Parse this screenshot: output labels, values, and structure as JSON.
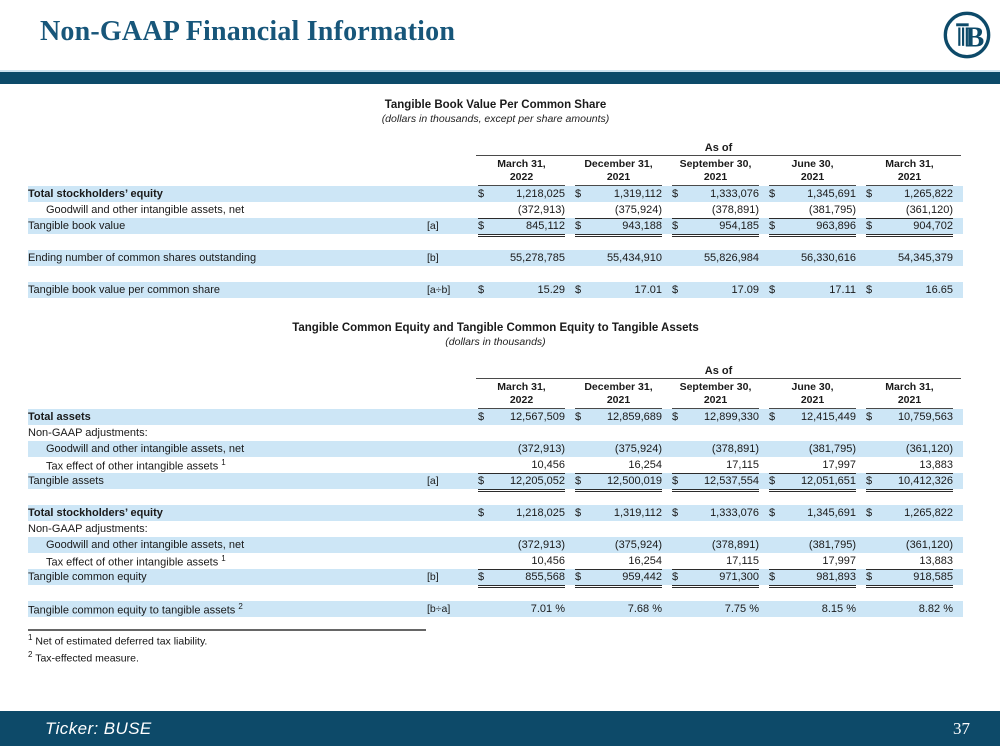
{
  "header": {
    "title": "Non-GAAP Financial Information",
    "logo_icon": "busey-b-column-logo"
  },
  "colors": {
    "accent_bar": "#0D4A69",
    "band_blue": "#CDE6F6",
    "title_text": "#17567A",
    "rule_dark": "#2B2B2B"
  },
  "tables": [
    {
      "title": "Tangible Book Value Per Common Share",
      "subtitle": "(dollars in thousands, except per share amounts)",
      "as_of_label": "As of",
      "columns": [
        {
          "period": "March 31,",
          "year": "2022"
        },
        {
          "period": "December 31,",
          "year": "2021"
        },
        {
          "period": "September 30,",
          "year": "2021"
        },
        {
          "period": "June 30,",
          "year": "2021"
        },
        {
          "period": "March 31,",
          "year": "2021"
        }
      ],
      "rows": [
        {
          "label": "Total stockholders’ equity",
          "bold": true,
          "band": true,
          "dollar": true,
          "values": [
            "1,218,025",
            "1,319,112",
            "1,333,076",
            "1,345,691",
            "1,265,822"
          ]
        },
        {
          "label": "Goodwill and other intangible assets, net",
          "indent": 1,
          "underline": "single",
          "values": [
            "(372,913)",
            "(375,924)",
            "(378,891)",
            "(381,795)",
            "(361,120)"
          ]
        },
        {
          "label": "Tangible book value",
          "bracket": "[a]",
          "band": true,
          "dollar": true,
          "underline": "double",
          "values": [
            "845,112",
            "943,188",
            "954,185",
            "963,896",
            "904,702"
          ]
        },
        {
          "spacer": true
        },
        {
          "label": "Ending number of common shares outstanding",
          "bracket": "[b]",
          "band": true,
          "values": [
            "55,278,785",
            "55,434,910",
            "55,826,984",
            "56,330,616",
            "54,345,379"
          ]
        },
        {
          "spacer": true
        },
        {
          "label": "Tangible book value per common share",
          "bracket": "[a÷b]",
          "band": true,
          "dollar": true,
          "values": [
            "15.29",
            "17.01",
            "17.09",
            "17.11",
            "16.65"
          ]
        }
      ]
    },
    {
      "title": "Tangible Common Equity and Tangible Common Equity to Tangible Assets",
      "subtitle": "(dollars in thousands)",
      "as_of_label": "As of",
      "columns": [
        {
          "period": "March 31,",
          "year": "2022"
        },
        {
          "period": "December 31,",
          "year": "2021"
        },
        {
          "period": "September 30,",
          "year": "2021"
        },
        {
          "period": "June 30,",
          "year": "2021"
        },
        {
          "period": "March 31,",
          "year": "2021"
        }
      ],
      "rows": [
        {
          "label": "Total assets",
          "bold": true,
          "band": true,
          "dollar": true,
          "values": [
            "12,567,509",
            "12,859,689",
            "12,899,330",
            "12,415,449",
            "10,759,563"
          ]
        },
        {
          "label": "Non-GAAP adjustments:"
        },
        {
          "label": "Goodwill and other intangible assets, net",
          "indent": 1,
          "band": true,
          "values": [
            "(372,913)",
            "(375,924)",
            "(378,891)",
            "(381,795)",
            "(361,120)"
          ]
        },
        {
          "label": "Tax effect of other intangible assets",
          "sup": "1",
          "indent": 1,
          "underline": "single",
          "values": [
            "10,456",
            "16,254",
            "17,115",
            "17,997",
            "13,883"
          ]
        },
        {
          "label": "Tangible assets",
          "bracket": "[a]",
          "band": true,
          "dollar": true,
          "underline": "double",
          "values": [
            "12,205,052",
            "12,500,019",
            "12,537,554",
            "12,051,651",
            "10,412,326"
          ]
        },
        {
          "spacer": true
        },
        {
          "label": "Total stockholders’ equity",
          "bold": true,
          "band": true,
          "dollar": true,
          "values": [
            "1,218,025",
            "1,319,112",
            "1,333,076",
            "1,345,691",
            "1,265,822"
          ]
        },
        {
          "label": "Non-GAAP adjustments:"
        },
        {
          "label": "Goodwill and other intangible assets, net",
          "indent": 1,
          "band": true,
          "values": [
            "(372,913)",
            "(375,924)",
            "(378,891)",
            "(381,795)",
            "(361,120)"
          ]
        },
        {
          "label": "Tax effect of other intangible assets",
          "sup": "1",
          "indent": 1,
          "underline": "single",
          "values": [
            "10,456",
            "16,254",
            "17,115",
            "17,997",
            "13,883"
          ]
        },
        {
          "label": "Tangible common equity",
          "bracket": "[b]",
          "band": true,
          "dollar": true,
          "underline": "double",
          "values": [
            "855,568",
            "959,442",
            "971,300",
            "981,893",
            "918,585"
          ]
        },
        {
          "spacer": true
        },
        {
          "label": "Tangible common equity to tangible assets",
          "sup": "2",
          "bracket": "[b÷a]",
          "band": true,
          "values": [
            "7.01 %",
            "7.68 %",
            "7.75 %",
            "8.15 %",
            "8.82 %"
          ]
        }
      ]
    }
  ],
  "footnotes": [
    {
      "sup": "1",
      "text": "Net of estimated deferred tax liability."
    },
    {
      "sup": "2",
      "text": "Tax-effected measure."
    }
  ],
  "footer": {
    "ticker": "Ticker:  BUSE",
    "page_number": "37"
  }
}
